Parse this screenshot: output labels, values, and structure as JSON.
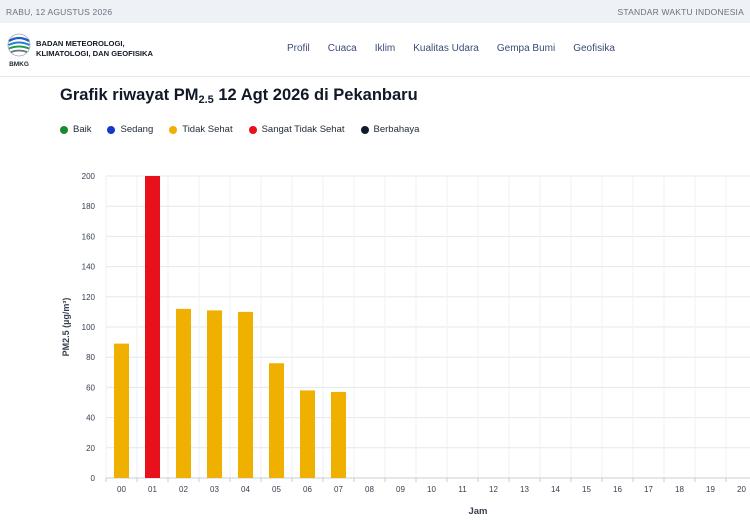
{
  "topbar": {
    "date": "RABU, 12 AGUSTUS 2026",
    "timezone": "STANDAR WAKTU INDONESIA"
  },
  "header": {
    "org_line1": "BADAN METEOROLOGI,",
    "org_line2": "KLIMATOLOGI, DAN GEOFISIKA",
    "logo_text": "BMKG",
    "nav": [
      "Profil",
      "Cuaca",
      "Iklim",
      "Kualitas Udara",
      "Gempa Bumi",
      "Geofisika"
    ]
  },
  "page": {
    "title_prefix": "Grafik riwayat PM",
    "title_sub": "2.5",
    "title_suffix": " 12 Agt 2026 di Pekanbaru"
  },
  "legend": [
    {
      "label": "Baik",
      "color": "#1a8a2e"
    },
    {
      "label": "Sedang",
      "color": "#1438c8"
    },
    {
      "label": "Tidak Sehat",
      "color": "#f0b000"
    },
    {
      "label": "Sangat Tidak Sehat",
      "color": "#e8101a"
    },
    {
      "label": "Berbahaya",
      "color": "#121a2e"
    }
  ],
  "chart_data": {
    "type": "bar",
    "xlabel": "Jam",
    "ylabel": "PM2.5 (µg/m³)",
    "ylim": [
      0,
      200
    ],
    "yticks": [
      0,
      20,
      40,
      60,
      80,
      100,
      120,
      140,
      160,
      180,
      200
    ],
    "categories": [
      "00",
      "01",
      "02",
      "03",
      "04",
      "05",
      "06",
      "07",
      "08",
      "09",
      "10",
      "11",
      "12",
      "13",
      "14",
      "15",
      "16",
      "17",
      "18",
      "19",
      "20"
    ],
    "values": [
      89,
      200,
      112,
      111,
      110,
      76,
      58,
      57,
      null,
      null,
      null,
      null,
      null,
      null,
      null,
      null,
      null,
      null,
      null,
      null,
      null
    ],
    "bar_colors": [
      "#f0b000",
      "#e8101a",
      "#f0b000",
      "#f0b000",
      "#f0b000",
      "#f0b000",
      "#f0b000",
      "#f0b000"
    ],
    "grid": true,
    "legend_position": "top-left"
  }
}
